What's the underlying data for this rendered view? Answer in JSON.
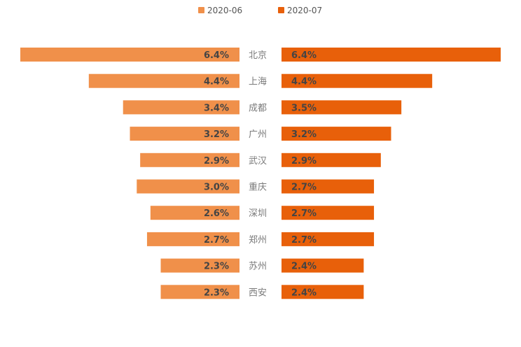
{
  "chart_data": {
    "type": "bar",
    "orientation": "horizontal-butterfly",
    "categories": [
      "北京",
      "上海",
      "成都",
      "广州",
      "武汉",
      "重庆",
      "深圳",
      "郑州",
      "苏州",
      "西安"
    ],
    "series": [
      {
        "name": "2020-06",
        "color": "#F0904A",
        "values": [
          6.4,
          4.4,
          3.4,
          3.2,
          2.9,
          3.0,
          2.6,
          2.7,
          2.3,
          2.3
        ],
        "labels": [
          "6.4%",
          "4.4%",
          "3.4%",
          "3.2%",
          "2.9%",
          "3.0%",
          "2.6%",
          "2.7%",
          "2.3%",
          "2.3%"
        ]
      },
      {
        "name": "2020-07",
        "color": "#E8600A",
        "values": [
          6.4,
          4.4,
          3.5,
          3.2,
          2.9,
          2.7,
          2.7,
          2.7,
          2.4,
          2.4
        ],
        "labels": [
          "6.4%",
          "4.4%",
          "3.5%",
          "3.2%",
          "2.9%",
          "2.7%",
          "2.7%",
          "2.7%",
          "2.4%",
          "2.4%"
        ]
      }
    ],
    "legend_position": "top-center",
    "grid": false
  }
}
